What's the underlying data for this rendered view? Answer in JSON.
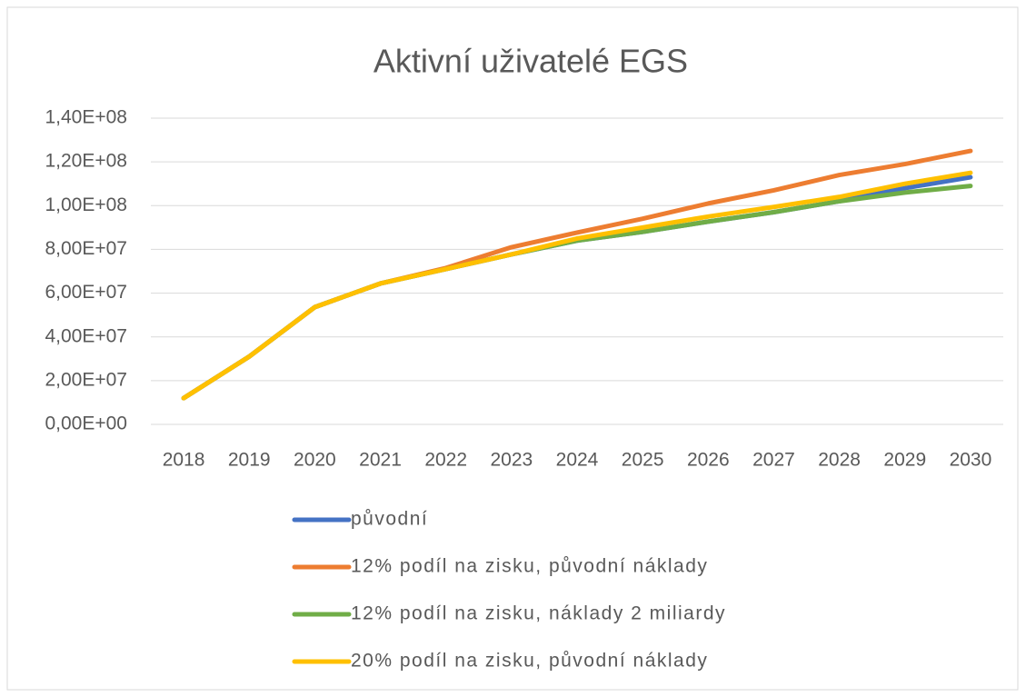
{
  "chart_data": {
    "type": "line",
    "title": "Aktivní uživatelé EGS",
    "categories": [
      "2018",
      "2019",
      "2020",
      "2021",
      "2022",
      "2023",
      "2024",
      "2025",
      "2026",
      "2027",
      "2028",
      "2029",
      "2030"
    ],
    "series": [
      {
        "name": "původní",
        "color": "#4472c4",
        "values": [
          12000000,
          31000000,
          53600000,
          64400000,
          71000000,
          77700000,
          84000000,
          88000000,
          92700000,
          97000000,
          102000000,
          108000000,
          113000000
        ]
      },
      {
        "name": "12% podíl na zisku, původní náklady",
        "color": "#ed7d31",
        "values": [
          12000000,
          31000000,
          53600000,
          64400000,
          71500000,
          81000000,
          87700000,
          94000000,
          101000000,
          107000000,
          114000000,
          119000000,
          125000000
        ]
      },
      {
        "name": "12% podíl na zisku, náklady 2 miliardy",
        "color": "#70ad47",
        "values": [
          12000000,
          31000000,
          53600000,
          64400000,
          71000000,
          77700000,
          84000000,
          88000000,
          92700000,
          97000000,
          102000000,
          106000000,
          109000000
        ]
      },
      {
        "name": "20% podíl na zisku, původní náklady",
        "color": "#ffc000",
        "values": [
          12000000,
          31000000,
          53600000,
          64400000,
          71000000,
          77700000,
          85000000,
          90000000,
          95000000,
          99400000,
          104000000,
          110000000,
          115000000
        ]
      }
    ],
    "ylim": [
      0,
      140000000
    ],
    "yticks": [
      {
        "value": 0,
        "label": "0,00E+00"
      },
      {
        "value": 20000000,
        "label": "2,00E+07"
      },
      {
        "value": 40000000,
        "label": "4,00E+07"
      },
      {
        "value": 60000000,
        "label": "6,00E+07"
      },
      {
        "value": 80000000,
        "label": "8,00E+07"
      },
      {
        "value": 100000000,
        "label": "1,00E+08"
      },
      {
        "value": 120000000,
        "label": "1,20E+08"
      },
      {
        "value": 140000000,
        "label": "1,40E+08"
      }
    ],
    "grid": true
  }
}
